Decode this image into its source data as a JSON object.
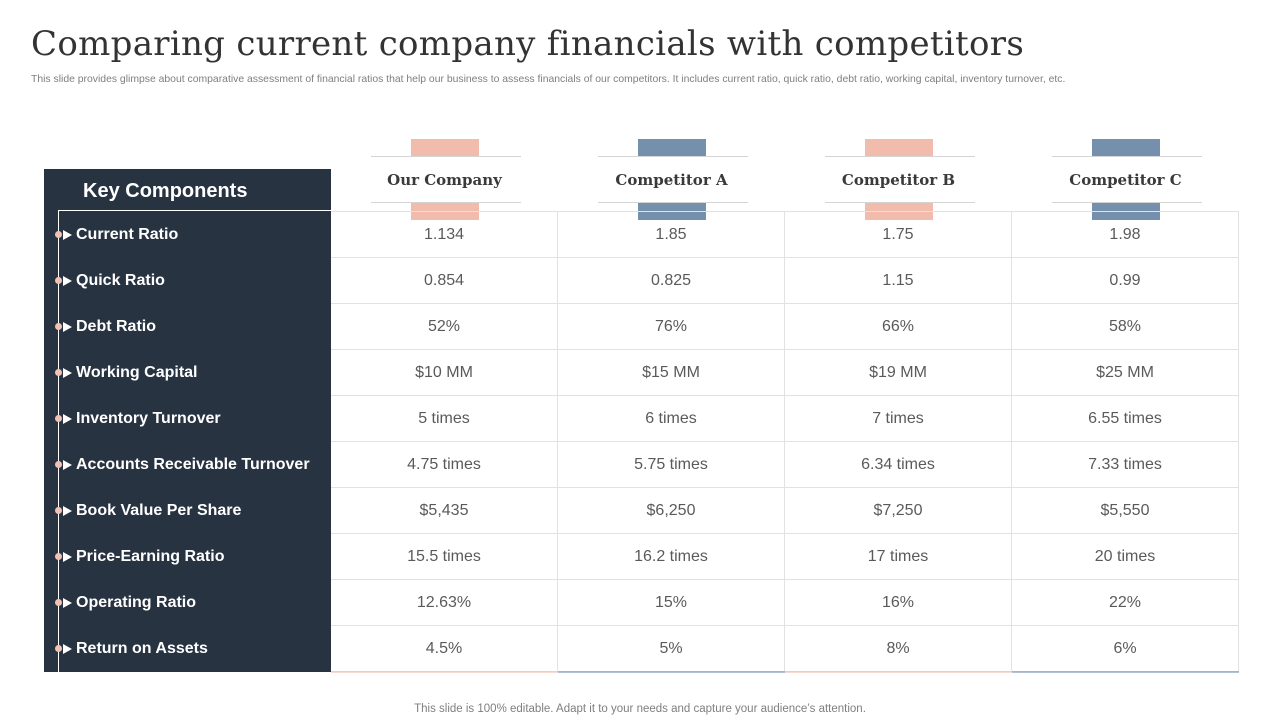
{
  "slide": {
    "title": "Comparing current company financials with competitors",
    "subtitle": "This slide provides glimpse about comparative assessment of financial ratios that help our business to assess financials of our competitors. It includes current ratio, quick ratio, debt ratio, working capital, inventory turnover, etc.",
    "footer": "This slide is 100% editable. Adapt it to your needs and capture your audience’s attention."
  },
  "table": {
    "heading": "Key Components",
    "columns": [
      {
        "name": "Our Company",
        "color": "#f2bcad"
      },
      {
        "name": "Competitor A",
        "color": "#7590ad"
      },
      {
        "name": "Competitor B",
        "color": "#f2bcad"
      },
      {
        "name": "Competitor C",
        "color": "#7590ad"
      }
    ],
    "rows": [
      {
        "label": "Current Ratio",
        "values": [
          "1.134",
          "1.85",
          "1.75",
          "1.98"
        ]
      },
      {
        "label": "Quick Ratio",
        "values": [
          "0.854",
          "0.825",
          "1.15",
          "0.99"
        ]
      },
      {
        "label": "Debt Ratio",
        "values": [
          "52%",
          "76%",
          "66%",
          "58%"
        ]
      },
      {
        "label": "Working Capital",
        "values": [
          "$10 MM",
          "$15 MM",
          "$19 MM",
          "$25 MM"
        ]
      },
      {
        "label": "Inventory Turnover",
        "values": [
          "5 times",
          "6 times",
          "7 times",
          "6.55 times"
        ]
      },
      {
        "label": "Accounts Receivable Turnover",
        "values": [
          "4.75 times",
          "5.75 times",
          "6.34 times",
          "7.33 times"
        ]
      },
      {
        "label": "Book Value Per Share",
        "values": [
          "$5,435",
          "$6,250",
          "$7,250",
          "$5,550"
        ]
      },
      {
        "label": "Price-Earning Ratio",
        "values": [
          "15.5 times",
          "16.2 times",
          "17 times",
          "20 times"
        ]
      },
      {
        "label": "Operating Ratio",
        "values": [
          "12.63%",
          "15%",
          "16%",
          "22%"
        ]
      },
      {
        "label": "Return on Assets",
        "values": [
          "4.5%",
          "5%",
          "8%",
          "6%"
        ]
      }
    ]
  },
  "colors": {
    "panel": "#283342",
    "accent_pink": "#f2bcad",
    "accent_blue": "#7590ad"
  }
}
